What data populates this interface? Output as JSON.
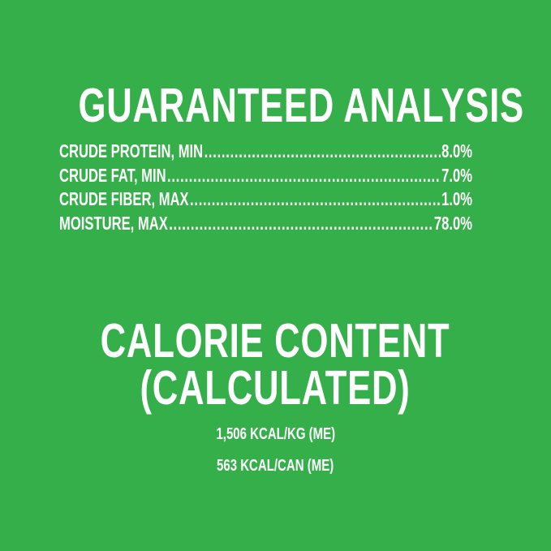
{
  "background_color": "#35af4a",
  "guaranteed_analysis": {
    "title": "GUARANTEED ANALYSIS",
    "rows": [
      {
        "label": "CRUDE PROTEIN, MIN",
        "value": "8.0%"
      },
      {
        "label": "CRUDE FAT, MIN",
        "value": "7.0%"
      },
      {
        "label": "CRUDE FIBER, MAX",
        "value": "1.0%"
      },
      {
        "label": "MOISTURE, MAX",
        "value": "78.0%"
      }
    ]
  },
  "calorie_content": {
    "title_line1": "CALORIE CONTENT",
    "title_line2": "(CALCULATED)",
    "lines": [
      "1,506 KCAL/KG (ME)",
      "563 KCAL/CAN (ME)"
    ]
  }
}
